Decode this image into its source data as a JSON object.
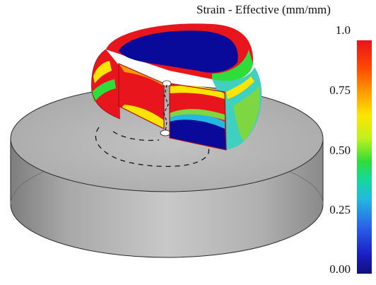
{
  "legend": {
    "title": "Strain - Effective (mm/mm)",
    "ticks": [
      "1.0",
      "0.75",
      "0.50",
      "0.25",
      "0.00"
    ]
  },
  "colors": {
    "die": "#b8b8b8",
    "part_red": "#e8161c",
    "part_blue": "#0a0a9a"
  }
}
